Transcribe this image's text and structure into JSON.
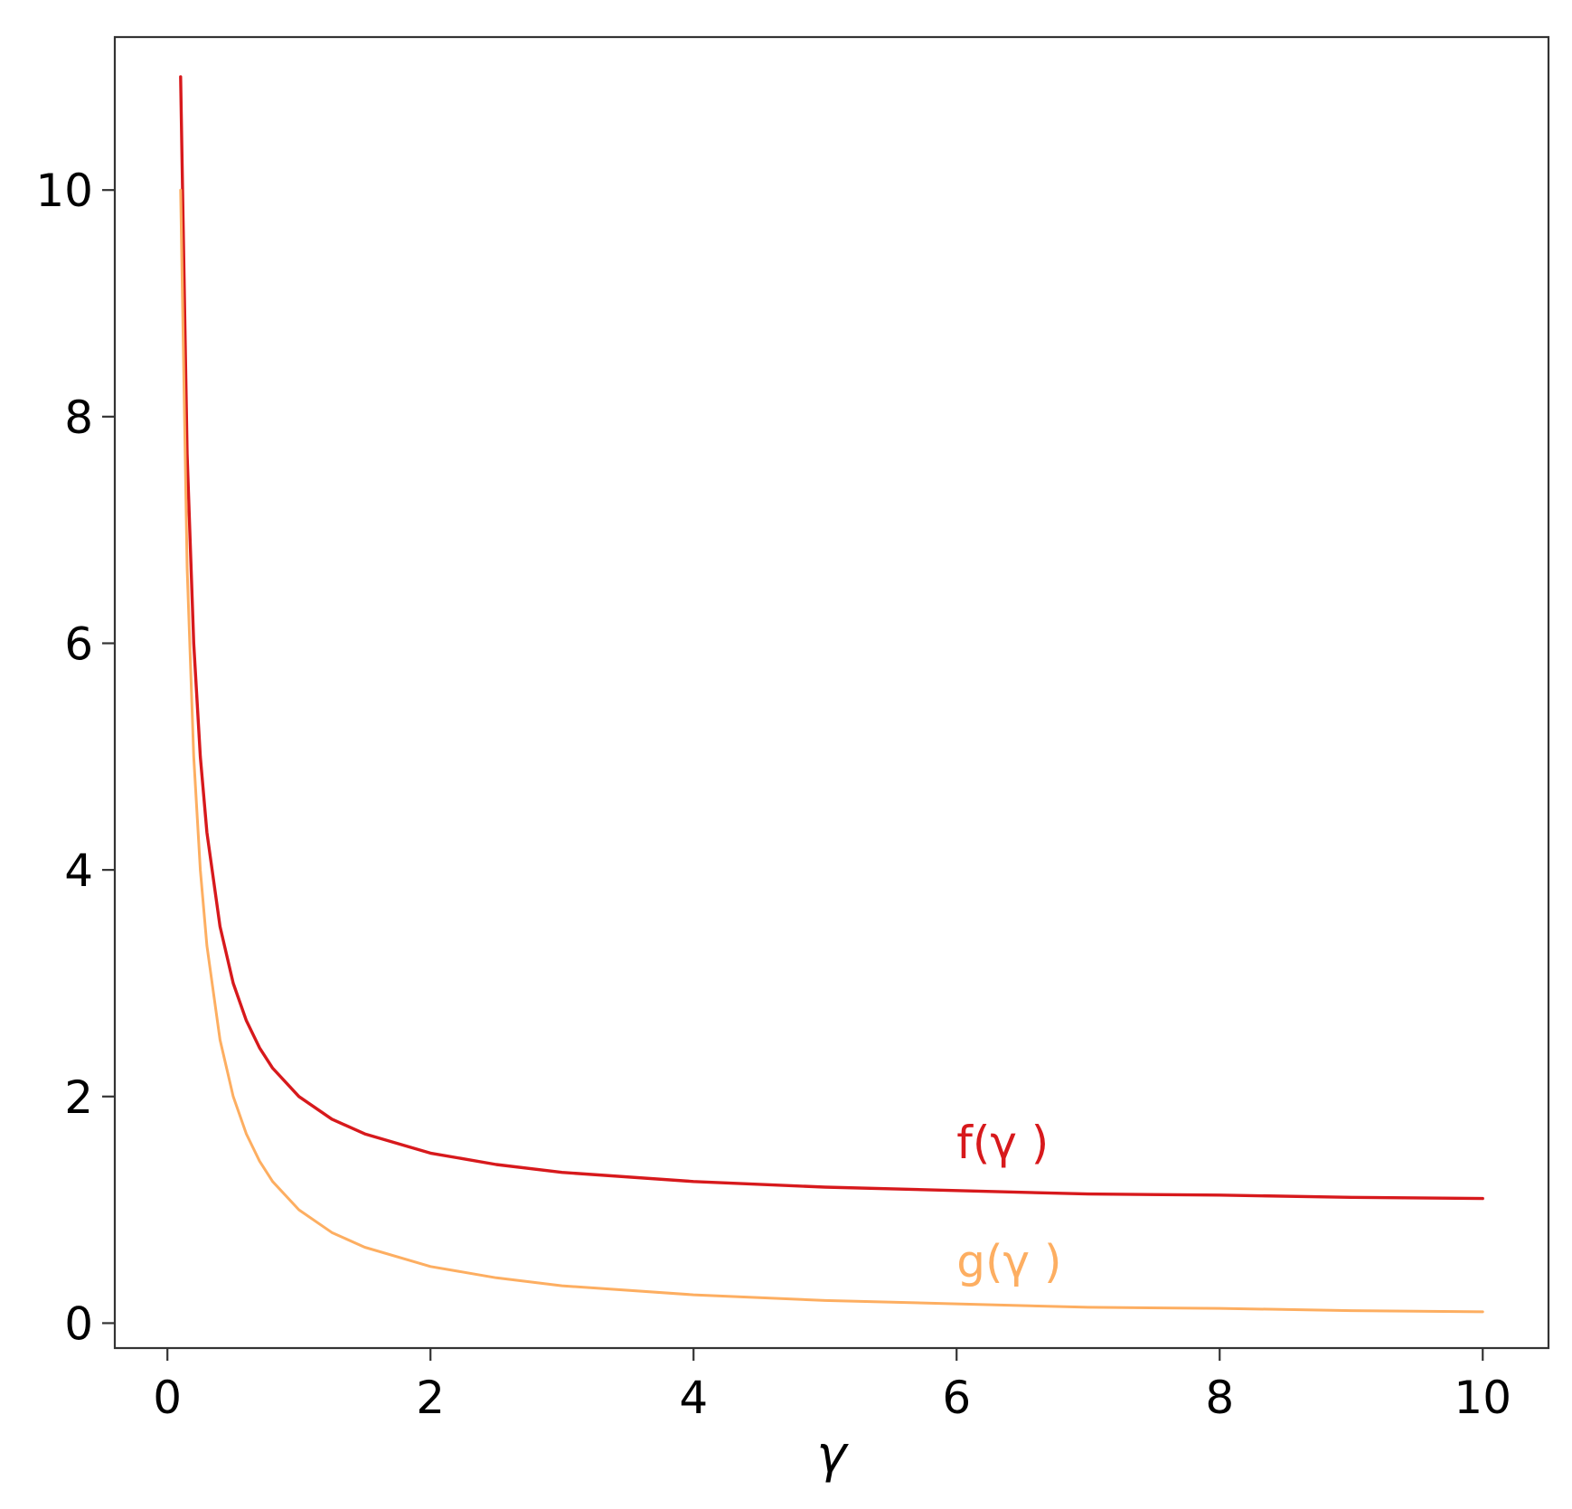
{
  "chart_data": {
    "type": "line",
    "title": "",
    "xlabel": "γ",
    "ylabel": "",
    "xlim": [
      -0.4,
      10.5
    ],
    "ylim": [
      -0.22,
      11.35
    ],
    "grid": false,
    "legend": "none",
    "x_ticks": [
      0,
      2,
      4,
      6,
      8,
      10
    ],
    "x_tick_labels": [
      "0",
      "2",
      "4",
      "6",
      "8",
      "10"
    ],
    "y_ticks": [
      0,
      2,
      4,
      6,
      8,
      10
    ],
    "y_tick_labels": [
      "0",
      "2",
      "4",
      "6",
      "8",
      "10"
    ],
    "series": [
      {
        "name": "f(γ )",
        "color": "#d7191c",
        "x": [
          0.1,
          0.15,
          0.2,
          0.25,
          0.3,
          0.4,
          0.5,
          0.6,
          0.7,
          0.8,
          1.0,
          1.25,
          1.5,
          2,
          2.5,
          3,
          4,
          5,
          6,
          7,
          8,
          9,
          10
        ],
        "y": [
          11.0,
          7.67,
          6.0,
          5.0,
          4.33,
          3.5,
          3.0,
          2.67,
          2.43,
          2.25,
          2.0,
          1.8,
          1.67,
          1.5,
          1.4,
          1.33,
          1.25,
          1.2,
          1.17,
          1.14,
          1.13,
          1.11,
          1.1
        ]
      },
      {
        "name": "g(γ )",
        "color": "#fdae61",
        "x": [
          0.1,
          0.15,
          0.2,
          0.25,
          0.3,
          0.4,
          0.5,
          0.6,
          0.7,
          0.8,
          1.0,
          1.25,
          1.5,
          2,
          2.5,
          3,
          4,
          5,
          6,
          7,
          8,
          9,
          10
        ],
        "y": [
          10.0,
          6.67,
          5.0,
          4.0,
          3.33,
          2.5,
          2.0,
          1.67,
          1.43,
          1.25,
          1.0,
          0.8,
          0.67,
          0.5,
          0.4,
          0.33,
          0.25,
          0.2,
          0.17,
          0.14,
          0.13,
          0.11,
          0.1
        ]
      }
    ],
    "annotations": [
      {
        "text": "f(γ )",
        "x": 6.0,
        "y": 1.6,
        "color": "#d7191c"
      },
      {
        "text": "g(γ )",
        "x": 6.0,
        "y": 0.55,
        "color": "#fdae61"
      }
    ]
  }
}
